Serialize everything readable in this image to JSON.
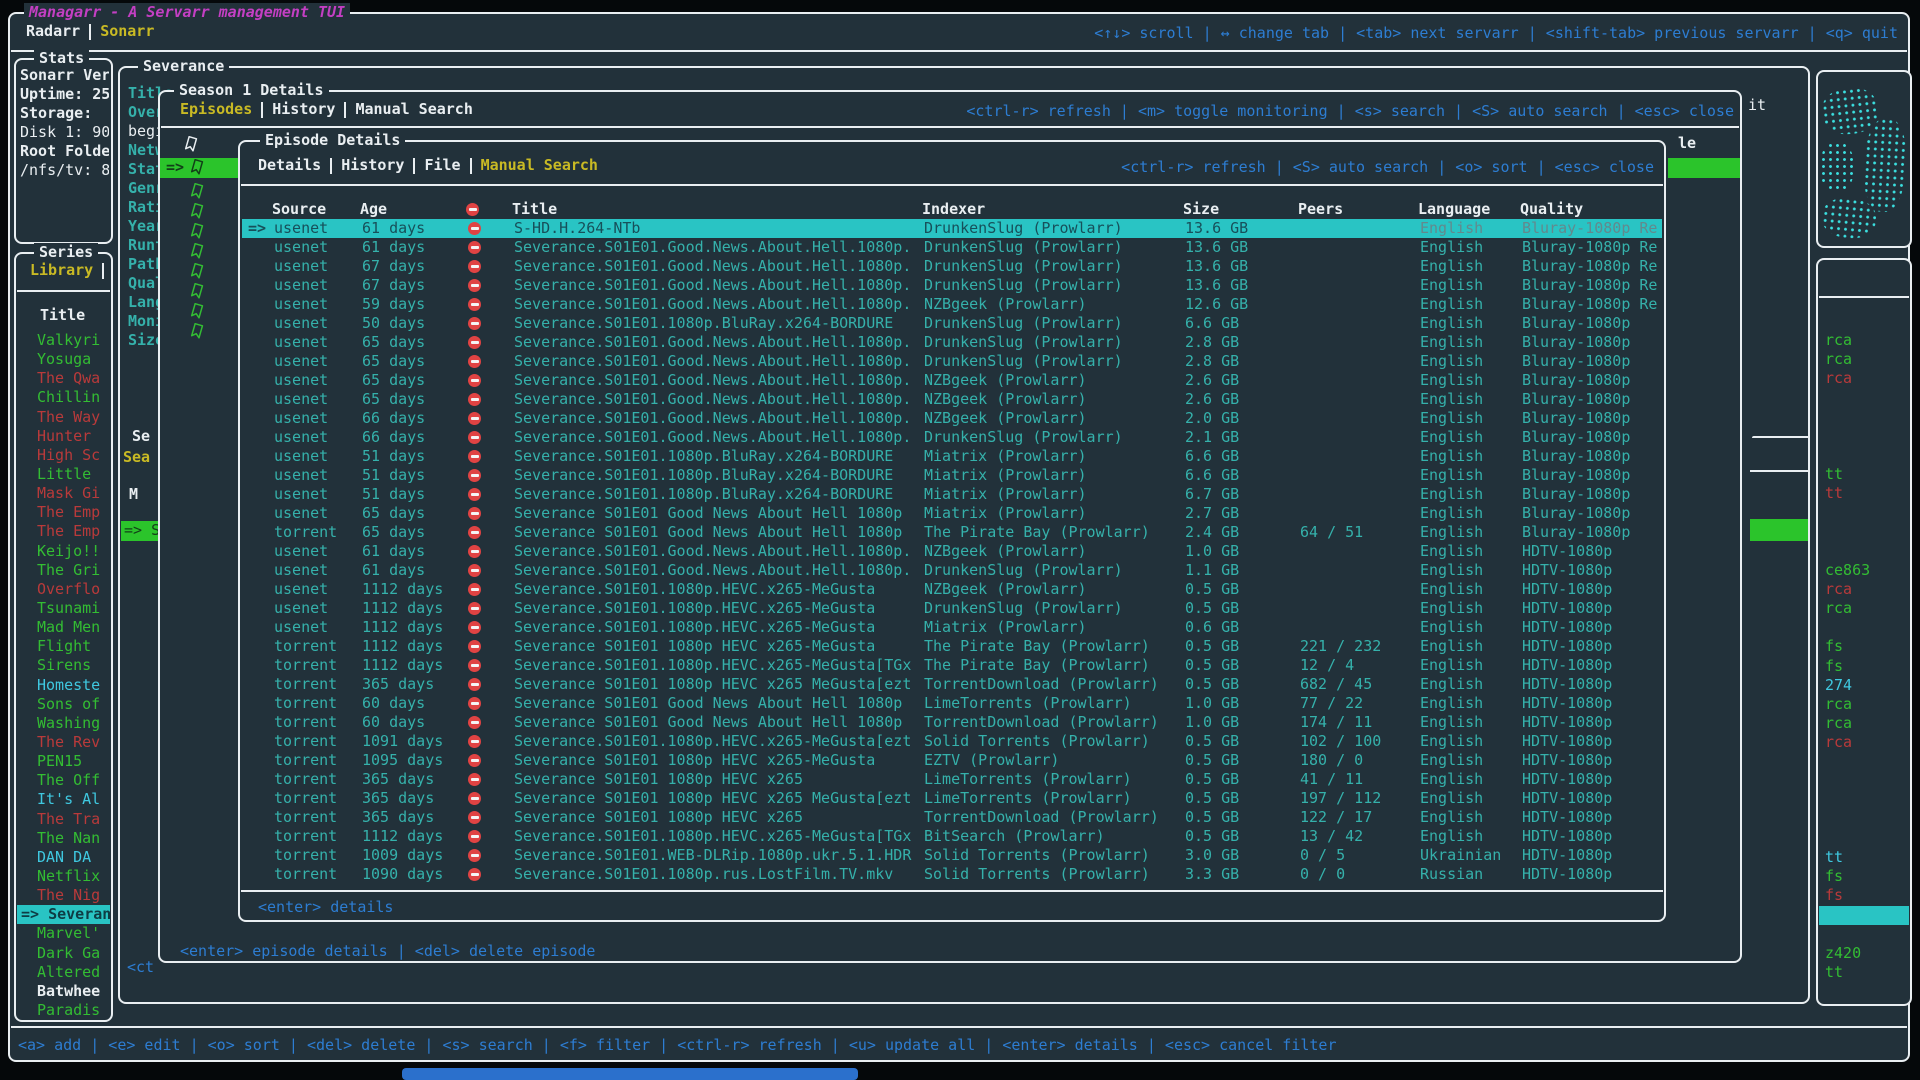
{
  "app": {
    "title": "Managarr - A Servarr management TUI",
    "tabs": [
      "Radarr",
      "Sonarr"
    ],
    "active_tab": "Sonarr",
    "top_keybinds": "<↑↓> scroll | ↔ change tab | <tab> next servarr | <shift-tab> previous servarr | <q> quit",
    "bottom_keybinds": "<a> add | <e> edit | <o> sort | <del> delete | <s> search | <f> filter | <ctrl-r> refresh | <u> update all | <enter> details | <esc> cancel filter"
  },
  "ui": {
    "selection_marker": "=>"
  },
  "colors": {
    "background": "#22313a",
    "border": "#e9eef1",
    "accent_cyan": "#29c4c4",
    "green": "#33bd33",
    "red": "#b93a3b",
    "yellow": "#c9ba24",
    "blue": "#2d7dd2",
    "magenta": "#c33fc3",
    "peers_purple": "#b44fd0",
    "peers_red": "#c83c3c"
  },
  "stats": {
    "title": "Stats",
    "lines": [
      {
        "text": "Sonarr Ver",
        "bold": true
      },
      {
        "text": "Uptime: 25",
        "bold": true
      },
      {
        "text": "Storage:",
        "bold": true
      },
      {
        "text": "Disk 1: 90",
        "bold": false
      },
      {
        "text": "Root Folde",
        "bold": true
      },
      {
        "text": "/nfs/tv: 8",
        "bold": false
      }
    ]
  },
  "series_panel": {
    "title": "Series",
    "tab": "Library",
    "column_header": "Title",
    "items": [
      {
        "label": "Valkyri",
        "status": "green"
      },
      {
        "label": "Yosuga",
        "status": "green"
      },
      {
        "label": "The Qwa",
        "status": "red"
      },
      {
        "label": "Chillin",
        "status": "green"
      },
      {
        "label": "The Way",
        "status": "red"
      },
      {
        "label": "Hunter",
        "status": "red"
      },
      {
        "label": "High Sc",
        "status": "red"
      },
      {
        "label": "Little",
        "status": "green"
      },
      {
        "label": "Mask Gi",
        "status": "red"
      },
      {
        "label": "The Emp",
        "status": "red"
      },
      {
        "label": "The Emp",
        "status": "red"
      },
      {
        "label": "Keijo!!",
        "status": "green"
      },
      {
        "label": "The Gri",
        "status": "green"
      },
      {
        "label": "Overflo",
        "status": "red"
      },
      {
        "label": "Tsunami",
        "status": "green"
      },
      {
        "label": "Mad Men",
        "status": "green"
      },
      {
        "label": "Flight",
        "status": "green"
      },
      {
        "label": "Sirens",
        "status": "green"
      },
      {
        "label": "Homeste",
        "status": "cyan"
      },
      {
        "label": "Sons of",
        "status": "green"
      },
      {
        "label": "Washing",
        "status": "green"
      },
      {
        "label": "The Rev",
        "status": "red"
      },
      {
        "label": "PEN15",
        "status": "green"
      },
      {
        "label": "The Off",
        "status": "green"
      },
      {
        "label": "It's Al",
        "status": "cyan"
      },
      {
        "label": "The Tra",
        "status": "red"
      },
      {
        "label": "The Nan",
        "status": "green"
      },
      {
        "label": "DAN DA",
        "status": "cyan"
      },
      {
        "label": "Netflix",
        "status": "green"
      },
      {
        "label": "The Nig",
        "status": "red"
      },
      {
        "label": "Severan",
        "status": "selected"
      },
      {
        "label": "Marvel'",
        "status": "green"
      },
      {
        "label": "Dark Ga",
        "status": "green"
      },
      {
        "label": "Altered",
        "status": "green"
      },
      {
        "label": "Batwhee",
        "status": "white"
      },
      {
        "label": "Paradis",
        "status": "green"
      }
    ]
  },
  "right_panel": {
    "fragments": [
      {
        "row": 0,
        "text": "rca",
        "color": "green"
      },
      {
        "row": 1,
        "text": "rca",
        "color": "green"
      },
      {
        "row": 2,
        "text": "rca",
        "color": "red"
      },
      {
        "row": 7,
        "text": "tt",
        "color": "green"
      },
      {
        "row": 8,
        "text": "tt",
        "color": "red"
      },
      {
        "row": 12,
        "text": "ce863",
        "color": "green"
      },
      {
        "row": 13,
        "text": "rca",
        "color": "red"
      },
      {
        "row": 14,
        "text": "rca",
        "color": "green"
      },
      {
        "row": 16,
        "text": "fs",
        "color": "green"
      },
      {
        "row": 17,
        "text": "fs",
        "color": "green"
      },
      {
        "row": 18,
        "text": "274",
        "color": "cyan"
      },
      {
        "row": 19,
        "text": "rca",
        "color": "green"
      },
      {
        "row": 20,
        "text": "rca",
        "color": "green"
      },
      {
        "row": 21,
        "text": "rca",
        "color": "red"
      },
      {
        "row": 27,
        "text": "tt",
        "color": "cyan"
      },
      {
        "row": 28,
        "text": "fs",
        "color": "green"
      },
      {
        "row": 29,
        "text": "fs",
        "color": "red"
      },
      {
        "row": 30,
        "text": "",
        "color": "selected"
      },
      {
        "row": 32,
        "text": "z420",
        "color": "green"
      },
      {
        "row": 33,
        "text": "tt",
        "color": "green"
      }
    ]
  },
  "severance_window": {
    "title": "Severance",
    "field_labels": [
      {
        "text": "Title",
        "kind": "label"
      },
      {
        "text": "Overv",
        "kind": "label"
      },
      {
        "text": "begin",
        "kind": "value"
      },
      {
        "text": "Netwo",
        "kind": "label"
      },
      {
        "text": "Statu",
        "kind": "label"
      },
      {
        "text": "Genre",
        "kind": "label"
      },
      {
        "text": "Ratin",
        "kind": "label"
      },
      {
        "text": "Year:",
        "kind": "label"
      },
      {
        "text": "Runti",
        "kind": "label"
      },
      {
        "text": "Path:",
        "kind": "label"
      },
      {
        "text": "Quali",
        "kind": "label"
      },
      {
        "text": "Langu",
        "kind": "label"
      },
      {
        "text": "Monit",
        "kind": "label"
      },
      {
        "text": "Size",
        "kind": "label"
      }
    ],
    "fragments": {
      "section_title": "Se",
      "section_tab": "Sea",
      "column_header": "M",
      "selected_row": "=> S",
      "footer_clipped": "<ct",
      "right_top_clipped": "it"
    }
  },
  "season_window": {
    "title": "Season 1 Details",
    "tabs": [
      "Episodes",
      "History",
      "Manual Search"
    ],
    "active_tab": "Episodes",
    "keybinds": "<ctrl-r> refresh | <m> toggle monitoring | <s> search | <S> auto search | <esc> close",
    "footer": "<enter> episode details | <del> delete episode",
    "episodes_header_clipped": "le",
    "monitored_ribbon_count": 8
  },
  "episode_window": {
    "title": "Episode Details",
    "tabs": [
      "Details",
      "History",
      "File",
      "Manual Search"
    ],
    "active_tab": "Manual Search",
    "keybinds": "<ctrl-r> refresh | <S> auto search | <o> sort | <esc> close",
    "footer": "<enter> details"
  },
  "table": {
    "headers": [
      "Source",
      "Age",
      "Title",
      "Indexer",
      "Size",
      "Peers",
      "Language",
      "Quality"
    ],
    "rows": [
      {
        "selected": true,
        "source": "usenet",
        "age": "61 days",
        "title": "S-HD.H.264-NTb",
        "indexer": "DrunkenSlug (Prowlarr)",
        "size": "13.6 GB",
        "peers": "",
        "peers_color": "",
        "language": "English",
        "quality": "Bluray-1080p Re"
      },
      {
        "selected": false,
        "source": "usenet",
        "age": "61 days",
        "title": "Severance.S01E01.Good.News.About.Hell.1080p.",
        "indexer": "DrunkenSlug (Prowlarr)",
        "size": "13.6 GB",
        "peers": "",
        "peers_color": "",
        "language": "English",
        "quality": "Bluray-1080p Re"
      },
      {
        "selected": false,
        "source": "usenet",
        "age": "67 days",
        "title": "Severance.S01E01.Good.News.About.Hell.1080p.",
        "indexer": "DrunkenSlug (Prowlarr)",
        "size": "13.6 GB",
        "peers": "",
        "peers_color": "",
        "language": "English",
        "quality": "Bluray-1080p Re"
      },
      {
        "selected": false,
        "source": "usenet",
        "age": "67 days",
        "title": "Severance.S01E01.Good.News.About.Hell.1080p.",
        "indexer": "DrunkenSlug (Prowlarr)",
        "size": "13.6 GB",
        "peers": "",
        "peers_color": "",
        "language": "English",
        "quality": "Bluray-1080p Re"
      },
      {
        "selected": false,
        "source": "usenet",
        "age": "59 days",
        "title": "Severance.S01E01.Good.News.About.Hell.1080p.",
        "indexer": "NZBgeek (Prowlarr)",
        "size": "12.6 GB",
        "peers": "",
        "peers_color": "",
        "language": "English",
        "quality": "Bluray-1080p Re"
      },
      {
        "selected": false,
        "source": "usenet",
        "age": "50 days",
        "title": "Severance.S01E01.1080p.BluRay.x264-BORDURE",
        "indexer": "DrunkenSlug (Prowlarr)",
        "size": "6.6 GB",
        "peers": "",
        "peers_color": "",
        "language": "English",
        "quality": "Bluray-1080p"
      },
      {
        "selected": false,
        "source": "usenet",
        "age": "65 days",
        "title": "Severance.S01E01.Good.News.About.Hell.1080p.",
        "indexer": "DrunkenSlug (Prowlarr)",
        "size": "2.8 GB",
        "peers": "",
        "peers_color": "",
        "language": "English",
        "quality": "Bluray-1080p"
      },
      {
        "selected": false,
        "source": "usenet",
        "age": "65 days",
        "title": "Severance.S01E01.Good.News.About.Hell.1080p.",
        "indexer": "DrunkenSlug (Prowlarr)",
        "size": "2.8 GB",
        "peers": "",
        "peers_color": "",
        "language": "English",
        "quality": "Bluray-1080p"
      },
      {
        "selected": false,
        "source": "usenet",
        "age": "65 days",
        "title": "Severance.S01E01.Good.News.About.Hell.1080p.",
        "indexer": "NZBgeek (Prowlarr)",
        "size": "2.6 GB",
        "peers": "",
        "peers_color": "",
        "language": "English",
        "quality": "Bluray-1080p"
      },
      {
        "selected": false,
        "source": "usenet",
        "age": "65 days",
        "title": "Severance.S01E01.Good.News.About.Hell.1080p.",
        "indexer": "NZBgeek (Prowlarr)",
        "size": "2.6 GB",
        "peers": "",
        "peers_color": "",
        "language": "English",
        "quality": "Bluray-1080p"
      },
      {
        "selected": false,
        "source": "usenet",
        "age": "66 days",
        "title": "Severance.S01E01.Good.News.About.Hell.1080p.",
        "indexer": "NZBgeek (Prowlarr)",
        "size": "2.0 GB",
        "peers": "",
        "peers_color": "",
        "language": "English",
        "quality": "Bluray-1080p"
      },
      {
        "selected": false,
        "source": "usenet",
        "age": "66 days",
        "title": "Severance.S01E01.Good.News.About.Hell.1080p.",
        "indexer": "DrunkenSlug (Prowlarr)",
        "size": "2.1 GB",
        "peers": "",
        "peers_color": "",
        "language": "English",
        "quality": "Bluray-1080p"
      },
      {
        "selected": false,
        "source": "usenet",
        "age": "51 days",
        "title": "Severance.S01E01.1080p.BluRay.x264-BORDURE",
        "indexer": "Miatrix (Prowlarr)",
        "size": "6.6 GB",
        "peers": "",
        "peers_color": "",
        "language": "English",
        "quality": "Bluray-1080p"
      },
      {
        "selected": false,
        "source": "usenet",
        "age": "51 days",
        "title": "Severance.S01E01.1080p.BluRay.x264-BORDURE",
        "indexer": "Miatrix (Prowlarr)",
        "size": "6.6 GB",
        "peers": "",
        "peers_color": "",
        "language": "English",
        "quality": "Bluray-1080p"
      },
      {
        "selected": false,
        "source": "usenet",
        "age": "51 days",
        "title": "Severance.S01E01.1080p.BluRay.x264-BORDURE",
        "indexer": "Miatrix (Prowlarr)",
        "size": "6.7 GB",
        "peers": "",
        "peers_color": "",
        "language": "English",
        "quality": "Bluray-1080p"
      },
      {
        "selected": false,
        "source": "usenet",
        "age": "65 days",
        "title": "Severance S01E01 Good News About Hell 1080p",
        "indexer": "Miatrix (Prowlarr)",
        "size": "2.7 GB",
        "peers": "",
        "peers_color": "",
        "language": "English",
        "quality": "Bluray-1080p"
      },
      {
        "selected": false,
        "source": "torrent",
        "age": "65 days",
        "title": "Severance S01E01 Good News About Hell 1080p",
        "indexer": "The Pirate Bay (Prowlarr)",
        "size": "2.4 GB",
        "peers": "64 / 51",
        "peers_color": "green",
        "language": "English",
        "quality": "Bluray-1080p"
      },
      {
        "selected": false,
        "source": "usenet",
        "age": "61 days",
        "title": "Severance.S01E01.Good.News.About.Hell.1080p.",
        "indexer": "NZBgeek (Prowlarr)",
        "size": "1.0 GB",
        "peers": "",
        "peers_color": "",
        "language": "English",
        "quality": "HDTV-1080p"
      },
      {
        "selected": false,
        "source": "usenet",
        "age": "61 days",
        "title": "Severance.S01E01.Good.News.About.Hell.1080p.",
        "indexer": "DrunkenSlug (Prowlarr)",
        "size": "1.1 GB",
        "peers": "",
        "peers_color": "",
        "language": "English",
        "quality": "HDTV-1080p"
      },
      {
        "selected": false,
        "source": "usenet",
        "age": "1112 days",
        "title": "Severance.S01E01.1080p.HEVC.x265-MeGusta",
        "indexer": "NZBgeek (Prowlarr)",
        "size": "0.5 GB",
        "peers": "",
        "peers_color": "",
        "language": "English",
        "quality": "HDTV-1080p"
      },
      {
        "selected": false,
        "source": "usenet",
        "age": "1112 days",
        "title": "Severance.S01E01.1080p.HEVC.x265-MeGusta",
        "indexer": "DrunkenSlug (Prowlarr)",
        "size": "0.5 GB",
        "peers": "",
        "peers_color": "",
        "language": "English",
        "quality": "HDTV-1080p"
      },
      {
        "selected": false,
        "source": "usenet",
        "age": "1112 days",
        "title": "Severance.S01E01.1080p.HEVC.x265-MeGusta",
        "indexer": "Miatrix (Prowlarr)",
        "size": "0.6 GB",
        "peers": "",
        "peers_color": "",
        "language": "English",
        "quality": "HDTV-1080p"
      },
      {
        "selected": false,
        "source": "torrent",
        "age": "1112 days",
        "title": "Severance S01E01 1080p HEVC x265-MeGusta",
        "indexer": "The Pirate Bay (Prowlarr)",
        "size": "0.5 GB",
        "peers": "221 / 232",
        "peers_color": "purple",
        "language": "English",
        "quality": "HDTV-1080p"
      },
      {
        "selected": false,
        "source": "torrent",
        "age": "1112 days",
        "title": "Severance.S01E01.1080p.HEVC.x265-MeGusta[TGx",
        "indexer": "The Pirate Bay (Prowlarr)",
        "size": "0.5 GB",
        "peers": "12 / 4",
        "peers_color": "green",
        "language": "English",
        "quality": "HDTV-1080p"
      },
      {
        "selected": false,
        "source": "torrent",
        "age": "365 days",
        "title": "Severance S01E01 1080p HEVC x265 MeGusta[ezt",
        "indexer": "TorrentDownload (Prowlarr)",
        "size": "0.5 GB",
        "peers": "682 / 45",
        "peers_color": "green",
        "language": "English",
        "quality": "HDTV-1080p"
      },
      {
        "selected": false,
        "source": "torrent",
        "age": "60 days",
        "title": "Severance S01E01 Good News About Hell 1080p",
        "indexer": "LimeTorrents (Prowlarr)",
        "size": "1.0 GB",
        "peers": "77 / 22",
        "peers_color": "green",
        "language": "English",
        "quality": "HDTV-1080p"
      },
      {
        "selected": false,
        "source": "torrent",
        "age": "60 days",
        "title": "Severance S01E01 Good News About Hell 1080p",
        "indexer": "TorrentDownload (Prowlarr)",
        "size": "1.0 GB",
        "peers": "174 / 11",
        "peers_color": "green",
        "language": "English",
        "quality": "HDTV-1080p"
      },
      {
        "selected": false,
        "source": "torrent",
        "age": "1091 days",
        "title": "Severance.S01E01.1080p.HEVC.x265-MeGusta[ezt",
        "indexer": "Solid Torrents (Prowlarr)",
        "size": "0.5 GB",
        "peers": "102 / 100",
        "peers_color": "green",
        "language": "English",
        "quality": "HDTV-1080p"
      },
      {
        "selected": false,
        "source": "torrent",
        "age": "1095 days",
        "title": "Severance S01E01 1080p HEVC x265-MeGusta",
        "indexer": "EZTV (Prowlarr)",
        "size": "0.5 GB",
        "peers": "180 / 0",
        "peers_color": "green",
        "language": "English",
        "quality": "HDTV-1080p"
      },
      {
        "selected": false,
        "source": "torrent",
        "age": "365 days",
        "title": "Severance S01E01 1080p HEVC x265",
        "indexer": "LimeTorrents (Prowlarr)",
        "size": "0.5 GB",
        "peers": "41 / 11",
        "peers_color": "green",
        "language": "English",
        "quality": "HDTV-1080p"
      },
      {
        "selected": false,
        "source": "torrent",
        "age": "365 days",
        "title": "Severance S01E01 1080p HEVC x265 MeGusta[ezt",
        "indexer": "LimeTorrents (Prowlarr)",
        "size": "0.5 GB",
        "peers": "197 / 112",
        "peers_color": "green",
        "language": "English",
        "quality": "HDTV-1080p"
      },
      {
        "selected": false,
        "source": "torrent",
        "age": "365 days",
        "title": "Severance S01E01 1080p HEVC x265",
        "indexer": "TorrentDownload (Prowlarr)",
        "size": "0.5 GB",
        "peers": "122 / 17",
        "peers_color": "green",
        "language": "English",
        "quality": "HDTV-1080p"
      },
      {
        "selected": false,
        "source": "torrent",
        "age": "1112 days",
        "title": "Severance.S01E01.1080p.HEVC.x265-MeGusta[TGx",
        "indexer": "BitSearch (Prowlarr)",
        "size": "0.5 GB",
        "peers": "13 / 42",
        "peers_color": "purple",
        "language": "English",
        "quality": "HDTV-1080p"
      },
      {
        "selected": false,
        "source": "torrent",
        "age": "1009 days",
        "title": "Severance.S01E01.WEB-DLRip.1080p.ukr.5.1.HDR",
        "indexer": "Solid Torrents (Prowlarr)",
        "size": "3.0 GB",
        "peers": "0 / 5",
        "peers_color": "red",
        "language": "Ukrainian",
        "quality": "HDTV-1080p"
      },
      {
        "selected": false,
        "source": "torrent",
        "age": "1090 days",
        "title": "Severance.S01E01.1080p.rus.LostFilm.TV.mkv",
        "indexer": "Solid Torrents (Prowlarr)",
        "size": "3.3 GB",
        "peers": "0 / 0",
        "peers_color": "red",
        "language": "Russian",
        "quality": "HDTV-1080p"
      }
    ]
  }
}
